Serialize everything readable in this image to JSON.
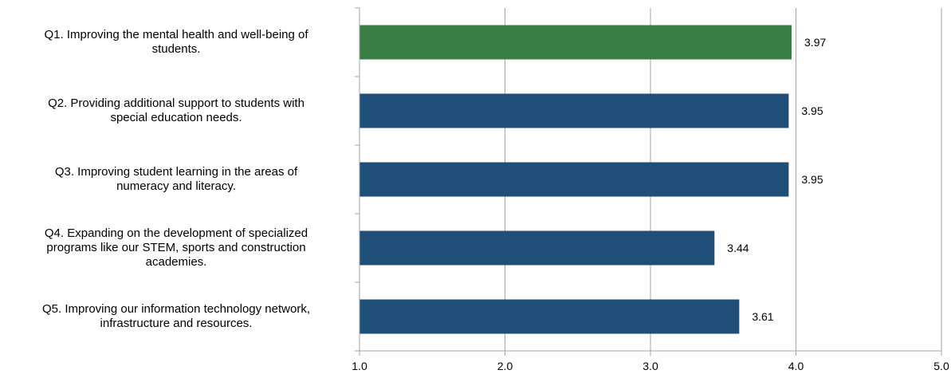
{
  "chart_data": {
    "type": "bar",
    "orientation": "horizontal",
    "categories": [
      "Q1. Improving the mental health and well-being of students.",
      "Q2. Providing additional support to students with special education needs.",
      "Q3. Improving student learning in the areas of numeracy and literacy.",
      "Q4. Expanding on the development of specialized programs like our STEM, sports and construction academies.",
      "Q5. Improving our information technology network, infrastructure and resources."
    ],
    "category_lines": [
      [
        "Q1. Improving the mental health and well-being of",
        "students."
      ],
      [
        "Q2. Providing additional support to students with",
        "special education needs."
      ],
      [
        "Q3. Improving student learning in the areas of",
        "numeracy and literacy."
      ],
      [
        "Q4. Expanding on the development of specialized",
        "programs like our STEM, sports and construction",
        "academies."
      ],
      [
        "Q5. Improving our information technology network,",
        "infrastructure and resources."
      ]
    ],
    "values": [
      3.97,
      3.95,
      3.95,
      3.44,
      3.61
    ],
    "value_labels": [
      "3.97",
      "3.95",
      "3.95",
      "3.44",
      "3.61"
    ],
    "bar_colors": [
      "#3a7d44",
      "#1f4e79",
      "#1f4e79",
      "#1f4e79",
      "#1f4e79"
    ],
    "xlim": [
      1.0,
      5.0
    ],
    "xticks": [
      1.0,
      2.0,
      3.0,
      4.0,
      5.0
    ],
    "xtick_labels": [
      "1.0",
      "2.0",
      "3.0",
      "4.0",
      "5.0"
    ],
    "grid": true,
    "title": "",
    "xlabel": "",
    "ylabel": ""
  }
}
